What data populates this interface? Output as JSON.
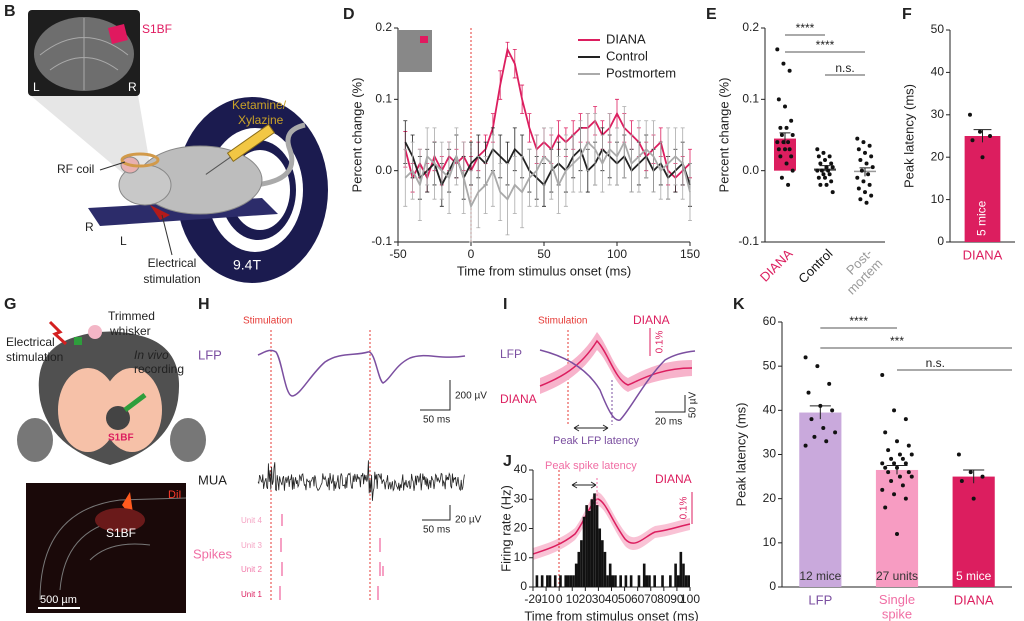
{
  "panel_B": {
    "letter": "B",
    "mri_region": "S1BF",
    "mri_left": "L",
    "mri_right": "R",
    "drug": [
      "Ketamine/",
      "Xylazine"
    ],
    "coil": "RF coil",
    "bed_right": "R",
    "bed_left": "L",
    "stimulation": [
      "Electrical",
      "stimulation"
    ],
    "field": "9.4T"
  },
  "panel_G": {
    "letter": "G",
    "whisker": [
      "Trimmed",
      "whisker"
    ],
    "stimulation": [
      "Electrical",
      "stimulation"
    ],
    "recording": [
      "In vivo",
      "recording"
    ],
    "region": "S1BF",
    "dye": "DiI",
    "section_region": "S1BF",
    "scale": "500 µm"
  },
  "panel_H": {
    "letter": "H",
    "stimulation": "Stimulation",
    "lfp": "LFP",
    "mua": "MUA",
    "spikes": "Spikes",
    "units": [
      "Unit 4",
      "Unit 3",
      "Unit 2",
      "Unit 1"
    ],
    "lfp_scale": [
      "50 ms",
      "200 µV"
    ],
    "mua_scale": [
      "50 ms",
      "20 µV"
    ]
  },
  "panel_I": {
    "letter": "I",
    "stimulation": "Stimulation",
    "diana": "DIANA",
    "scale": "0.1%",
    "lfp": "LFP",
    "diana_trace": "DIANA",
    "time_scale": "20 ms",
    "voltage_scale": "50 µV",
    "latency": "Peak LFP latency"
  },
  "chart_data": [
    {
      "letter": "D",
      "type": "line",
      "ylabel": "Percent change (%)",
      "xlabel": "Time from stimulus onset (ms)",
      "x": [
        -45,
        -40,
        -35,
        -30,
        -25,
        -20,
        -15,
        -10,
        -5,
        0,
        5,
        10,
        15,
        20,
        25,
        30,
        35,
        40,
        45,
        50,
        55,
        60,
        65,
        70,
        75,
        80,
        85,
        90,
        95,
        100,
        105,
        110,
        115,
        120,
        125,
        130,
        135,
        140,
        145,
        150
      ],
      "series": [
        {
          "name": "DIANA",
          "color": "#dc1e5f",
          "values": [
            0.03,
            -0.01,
            0.01,
            -0.01,
            0.02,
            0.0,
            0.02,
            0.01,
            0.02,
            0.0,
            0.02,
            0.03,
            0.06,
            0.12,
            0.17,
            0.15,
            0.1,
            0.06,
            0.03,
            0.04,
            0.03,
            0.05,
            0.04,
            0.05,
            0.06,
            0.06,
            0.07,
            0.05,
            0.06,
            0.08,
            0.06,
            0.05,
            0.04,
            0.02,
            0.03,
            0.04,
            0.0,
            -0.01,
            0.0,
            0.01
          ],
          "errors": [
            0.025,
            0.02,
            0.02,
            0.02,
            0.02,
            0.02,
            0.02,
            0.02,
            0.02,
            0.02,
            0.02,
            0.02,
            0.02,
            0.02,
            0.01,
            0.02,
            0.02,
            0.02,
            0.02,
            0.02,
            0.02,
            0.02,
            0.02,
            0.02,
            0.02,
            0.02,
            0.02,
            0.02,
            0.02,
            0.02,
            0.02,
            0.02,
            0.02,
            0.02,
            0.02,
            0.02,
            0.02,
            0.02,
            0.02,
            0.02
          ]
        },
        {
          "name": "Control",
          "color": "#222222",
          "values": [
            0.04,
            0.02,
            -0.01,
            0.0,
            0.01,
            -0.02,
            0.0,
            0.02,
            -0.01,
            0.01,
            0.02,
            0.01,
            0.03,
            0.02,
            0.01,
            0.03,
            0.02,
            0.0,
            -0.01,
            -0.02,
            0.0,
            0.01,
            0.0,
            0.02,
            0.03,
            0.0,
            0.01,
            0.03,
            0.02,
            0.01,
            0.02,
            0.0,
            0.01,
            0.02,
            0.0,
            0.01,
            -0.01,
            0.0,
            0.01,
            -0.02
          ],
          "errors": [
            0.03,
            0.03,
            0.03,
            0.03,
            0.03,
            0.03,
            0.03,
            0.03,
            0.03,
            0.03,
            0.03,
            0.03,
            0.03,
            0.03,
            0.03,
            0.03,
            0.03,
            0.03,
            0.03,
            0.03,
            0.03,
            0.03,
            0.03,
            0.03,
            0.03,
            0.03,
            0.03,
            0.03,
            0.03,
            0.03,
            0.03,
            0.03,
            0.03,
            0.03,
            0.03,
            0.03,
            0.03,
            0.03,
            0.03,
            0.03
          ]
        },
        {
          "name": "Postmortem",
          "color": "#aaaaaa",
          "values": [
            -0.01,
            0.0,
            -0.02,
            0.02,
            0.01,
            0.0,
            -0.01,
            0.02,
            -0.01,
            -0.05,
            -0.03,
            -0.02,
            0.0,
            -0.03,
            -0.04,
            -0.02,
            -0.03,
            -0.01,
            0.0,
            0.02,
            0.01,
            -0.02,
            0.0,
            0.01,
            0.02,
            0.04,
            0.03,
            0.01,
            0.03,
            0.02,
            0.04,
            0.01,
            0.02,
            0.03,
            0.02,
            0.0,
            0.01,
            0.02,
            0.01,
            -0.03
          ],
          "errors": [
            0.04,
            0.04,
            0.05,
            0.04,
            0.05,
            0.04,
            0.05,
            0.04,
            0.05,
            0.05,
            0.05,
            0.04,
            0.05,
            0.04,
            0.05,
            0.04,
            0.05,
            0.04,
            0.05,
            0.04,
            0.05,
            0.04,
            0.05,
            0.04,
            0.05,
            0.04,
            0.05,
            0.04,
            0.05,
            0.04,
            0.05,
            0.04,
            0.05,
            0.04,
            0.05,
            0.04,
            0.05,
            0.04,
            0.05,
            0.04
          ]
        }
      ],
      "xlim": [
        -50,
        150
      ],
      "xticks": [
        -50,
        0,
        50,
        100,
        150
      ],
      "ylim": [
        -0.1,
        0.2
      ],
      "yticks": [
        -0.1,
        {
          "value": 0,
          "label": "0.0"
        },
        0.1,
        0.2
      ],
      "legend": "upper right"
    },
    {
      "letter": "E",
      "type": "bar",
      "ylabel": "Percent change (%)",
      "categories": [
        "DIANA",
        "Control",
        "Post-\nmortem"
      ],
      "label_colors": [
        "#dc1e5f",
        "#111111",
        "#999999"
      ],
      "values": [
        0.045,
        0.003,
        -0.002
      ],
      "errors": [
        0.008,
        0.004,
        0.006
      ],
      "colors": [
        "#dc1e5f",
        "#444444",
        "#999999"
      ],
      "points": [
        [
          0.17,
          0.15,
          0.14,
          0.1,
          0.09,
          0.07,
          0.06,
          0.06,
          0.05,
          0.05,
          0.04,
          0.04,
          0.04,
          0.03,
          0.03,
          0.03,
          0.02,
          0.02,
          0.01,
          0.0,
          -0.01,
          -0.02
        ],
        [
          0.03,
          0.025,
          0.02,
          0.02,
          0.015,
          0.01,
          0.01,
          0.005,
          0.005,
          0.0,
          0.0,
          0.0,
          -0.005,
          -0.005,
          -0.01,
          -0.01,
          -0.015,
          -0.02,
          -0.02,
          -0.03
        ],
        [
          0.045,
          0.04,
          0.035,
          0.03,
          0.025,
          0.02,
          0.015,
          0.01,
          0.005,
          0.0,
          -0.005,
          -0.01,
          -0.015,
          -0.02,
          -0.025,
          -0.03,
          -0.035,
          -0.04,
          -0.045
        ]
      ],
      "ylim": [
        -0.1,
        0.2
      ],
      "yticks": [
        -0.1,
        {
          "value": 0,
          "label": "0.0"
        },
        0.1,
        0.2
      ],
      "significance": [
        "****",
        "****",
        "n.s."
      ]
    },
    {
      "letter": "F",
      "type": "bar",
      "ylabel": "Peak latency (ms)",
      "categories": [
        "DIANA"
      ],
      "label_colors": [
        "#dc1e5f"
      ],
      "values": [
        25
      ],
      "errors": [
        1.5
      ],
      "colors": [
        "#dc1e5f"
      ],
      "points": [
        [
          30,
          26,
          25,
          24,
          20
        ]
      ],
      "bar_labels": [
        "5 mice"
      ],
      "ylim": [
        0,
        50
      ],
      "yticks": [
        0,
        10,
        20,
        30,
        40,
        50
      ]
    },
    {
      "letter": "J",
      "type": "histogram",
      "ylabel": "Firing rate (Hz)",
      "xlabel": "Time from stimulus onset (ms)",
      "bins": [
        -20,
        -18,
        -16,
        -14,
        -12,
        -10,
        -8,
        -6,
        -4,
        -2,
        0,
        2,
        4,
        6,
        8,
        10,
        12,
        14,
        16,
        18,
        20,
        22,
        24,
        26,
        28,
        30,
        32,
        34,
        36,
        38,
        40,
        42,
        44,
        46,
        48,
        50,
        52,
        54,
        56,
        58,
        60,
        62,
        64,
        66,
        68,
        70,
        72,
        74,
        76,
        78,
        80,
        82,
        84,
        86,
        88,
        90,
        92,
        94,
        96,
        98,
        100
      ],
      "counts": [
        0,
        4,
        0,
        4,
        0,
        4,
        4,
        0,
        4,
        0,
        4,
        0,
        4,
        4,
        4,
        4,
        8,
        12,
        16,
        24,
        28,
        26,
        30,
        32,
        28,
        20,
        16,
        12,
        4,
        8,
        4,
        4,
        0,
        4,
        0,
        4,
        0,
        4,
        0,
        0,
        4,
        0,
        8,
        4,
        4,
        0,
        4,
        0,
        0,
        4,
        0,
        0,
        4,
        0,
        8,
        4,
        12,
        8,
        4,
        4
      ],
      "color": "#111111",
      "xlim": [
        -20,
        100
      ],
      "xticks": [
        -20,
        -10,
        0,
        10,
        20,
        30,
        40,
        50,
        60,
        70,
        80,
        90,
        100
      ],
      "ylim": [
        0,
        40
      ],
      "yticks": [
        0,
        10,
        20,
        30,
        40
      ],
      "annotations": {
        "peak": "Peak spike latency",
        "diana": "DIANA",
        "scale": "0.1%"
      }
    },
    {
      "letter": "K",
      "type": "bar",
      "ylabel": "Peak latency (ms)",
      "categories": [
        "LFP",
        "Single\nspike",
        "DIANA"
      ],
      "label_colors": [
        "#7b4fa0",
        "#f06ea4",
        "#dc1e5f"
      ],
      "values": [
        39.5,
        26.5,
        25
      ],
      "errors": [
        1.5,
        1,
        1.5
      ],
      "colors": [
        "#c9a9dc",
        "#f79cc2",
        "#dc1e5f"
      ],
      "points": [
        [
          52,
          50,
          46,
          44,
          41,
          40,
          38,
          36,
          35,
          34,
          33,
          32
        ],
        [
          48,
          40,
          38,
          35,
          33,
          32,
          31,
          30,
          30,
          29,
          29,
          28,
          28,
          28,
          27,
          27,
          26,
          26,
          25,
          25,
          24,
          23,
          22,
          21,
          20,
          18,
          12
        ],
        [
          30,
          26,
          25,
          24,
          20
        ]
      ],
      "bar_labels": [
        "12 mice",
        "27 units",
        "5 mice"
      ],
      "ylim": [
        0,
        60
      ],
      "yticks": [
        0,
        10,
        20,
        30,
        40,
        50,
        60
      ],
      "significance": [
        "****",
        "***",
        "n.s."
      ]
    }
  ]
}
